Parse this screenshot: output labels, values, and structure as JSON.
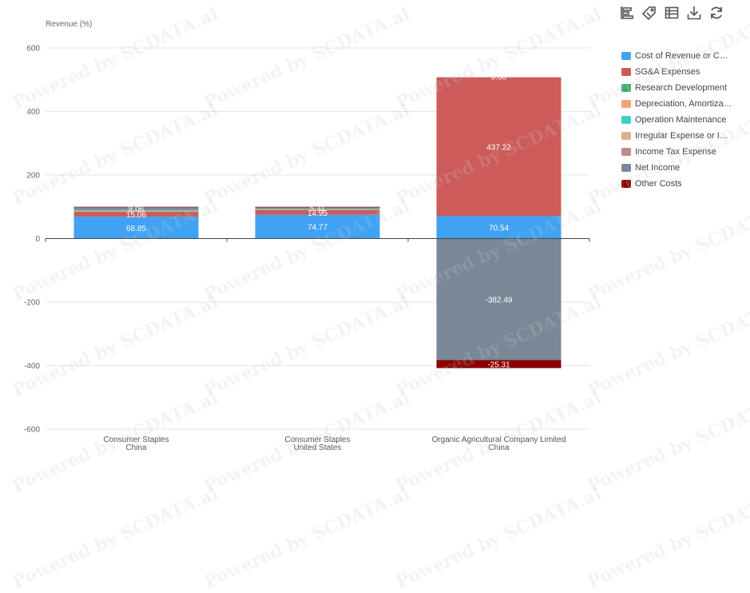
{
  "watermark": "Powered by SCDATA.ai",
  "toolbar": {
    "icons": [
      "bar-chart-icon",
      "tag-icon",
      "table-icon",
      "download-icon",
      "refresh-icon"
    ]
  },
  "chart_data": {
    "type": "bar",
    "stacked": true,
    "ylabel": "Revenue (%)",
    "ylim": [
      -600,
      600
    ],
    "yticks": [
      600,
      400,
      200,
      0,
      -200,
      -400,
      -600
    ],
    "grid": true,
    "legend_position": "right",
    "categories": [
      [
        "Consumer Staples",
        "China"
      ],
      [
        "Consumer Staples",
        "United States"
      ],
      [
        "Organic Agricultural Company Limited",
        "China"
      ]
    ],
    "series": [
      {
        "name": "Cost of Revenue or COGS",
        "color": "#3fa2f3",
        "values": [
          68.85,
          74.77,
          70.54
        ],
        "labels": [
          "68.85",
          "74.77",
          "70.54"
        ]
      },
      {
        "name": "SG&A Expenses",
        "color": "#cd5b5a",
        "values": [
          15.06,
          14.95,
          437.22
        ],
        "labels": [
          "15.06",
          "14.95",
          "437.22"
        ]
      },
      {
        "name": "Research Development",
        "color": "#3cac6c",
        "values": [
          0.5,
          0.3,
          0
        ],
        "labels": [
          "",
          "",
          ""
        ]
      },
      {
        "name": "Depreciation, Amortization",
        "color": "#f7a27a",
        "values": [
          1.2,
          0.8,
          0
        ],
        "labels": [
          "",
          "",
          ""
        ]
      },
      {
        "name": "Operation Maintenance",
        "color": "#44cdc4",
        "values": [
          0.3,
          0.2,
          0
        ],
        "labels": [
          "",
          "",
          ""
        ]
      },
      {
        "name": "Irregular Expense or Income",
        "color": "#d8b48a",
        "values": [
          1.5,
          0.8,
          0
        ],
        "labels": [
          "",
          "",
          ""
        ]
      },
      {
        "name": "Income Tax Expense",
        "color": "#b88d8c",
        "values": [
          3.0,
          2.0,
          0
        ],
        "labels": [
          "",
          "",
          ""
        ]
      },
      {
        "name": "Net Income",
        "color": "#798897",
        "values": [
          8.06,
          5.31,
          -382.49
        ],
        "labels": [
          "8.06",
          "5.31",
          "-382.49"
        ]
      },
      {
        "name": "Other Costs",
        "color": "#8b0000",
        "values": [
          1.6,
          0.9,
          -25.31
        ],
        "labels": [
          "",
          "",
          "-25.31"
        ]
      }
    ],
    "annotations": [
      "0.00"
    ]
  }
}
